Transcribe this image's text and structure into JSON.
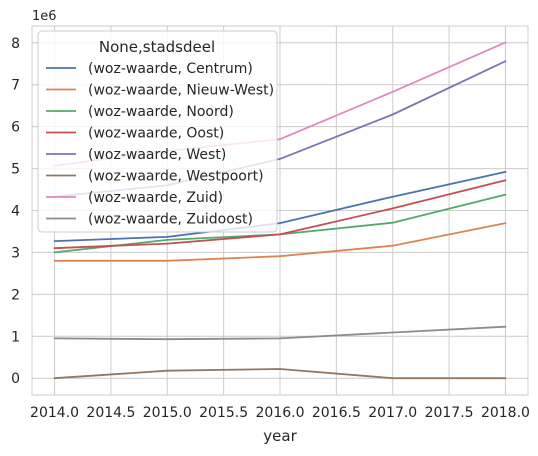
{
  "chart_data": {
    "type": "line",
    "x": [
      2014,
      2015,
      2016,
      2017,
      2018
    ],
    "xlabel": "year",
    "ylabel": "",
    "offset_text": "1e6",
    "xlim": [
      2013.8,
      2018.2
    ],
    "ylim": [
      -400000,
      8400000
    ],
    "x_ticks": [
      2014.0,
      2014.5,
      2015.0,
      2015.5,
      2016.0,
      2016.5,
      2017.0,
      2017.5,
      2018.0
    ],
    "x_tick_labels": [
      "2014.0",
      "2014.5",
      "2015.0",
      "2015.5",
      "2016.0",
      "2016.5",
      "2017.0",
      "2017.5",
      "2018.0"
    ],
    "y_ticks": [
      0,
      1000000,
      2000000,
      3000000,
      4000000,
      5000000,
      6000000,
      7000000,
      8000000
    ],
    "y_tick_labels": [
      "0",
      "1",
      "2",
      "3",
      "4",
      "5",
      "6",
      "7",
      "8"
    ],
    "grid": true,
    "legend": {
      "title": "None,stadsdeel",
      "placement": "upper-left"
    },
    "series": [
      {
        "name": "(woz-waarde, Centrum)",
        "color": "#4c72b0",
        "values": [
          3270000,
          3370000,
          3700000,
          4330000,
          4920000
        ]
      },
      {
        "name": "(woz-waarde, Nieuw-West)",
        "color": "#dd8452",
        "values": [
          2800000,
          2800000,
          2910000,
          3160000,
          3700000
        ]
      },
      {
        "name": "(woz-waarde, Noord)",
        "color": "#55a868",
        "values": [
          3000000,
          3300000,
          3430000,
          3710000,
          4380000
        ]
      },
      {
        "name": "(woz-waarde, Oost)",
        "color": "#c44e52",
        "values": [
          3100000,
          3210000,
          3430000,
          4050000,
          4720000
        ]
      },
      {
        "name": "(woz-waarde, West)",
        "color": "#8172b3",
        "values": [
          4330000,
          4600000,
          5230000,
          6290000,
          7560000
        ]
      },
      {
        "name": "(woz-waarde, Westpoort)",
        "color": "#937860",
        "values": [
          0,
          180000,
          220000,
          0,
          0
        ]
      },
      {
        "name": "(woz-waarde, Zuid)",
        "color": "#da8bc3",
        "values": [
          5070000,
          5420000,
          5700000,
          6830000,
          8010000
        ]
      },
      {
        "name": "(woz-waarde, Zuidoost)",
        "color": "#8c8c8c",
        "values": [
          950000,
          930000,
          950000,
          1090000,
          1230000
        ]
      }
    ]
  }
}
